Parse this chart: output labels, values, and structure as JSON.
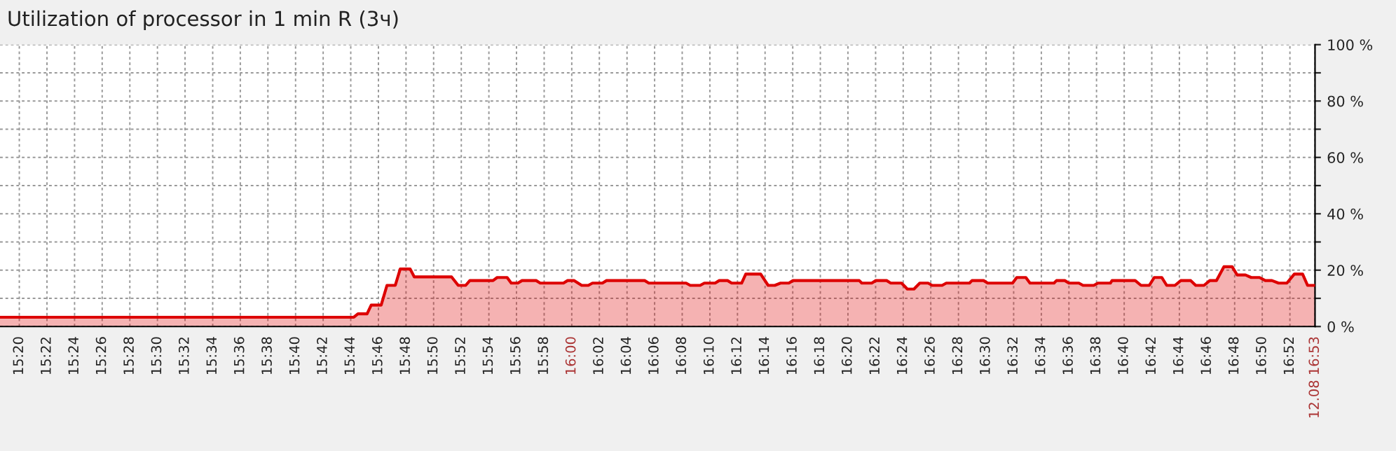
{
  "chart_data": {
    "type": "area",
    "title": "Utilization of processor in 1 min R (3ч)",
    "xlim": [
      15.31,
      16.897
    ],
    "ylim": [
      0,
      100
    ],
    "yticks": [
      {
        "value": 0,
        "label": "0 %"
      },
      {
        "value": 10,
        "label": null
      },
      {
        "value": 20,
        "label": "20 %"
      },
      {
        "value": 30,
        "label": null
      },
      {
        "value": 40,
        "label": "40 %"
      },
      {
        "value": 50,
        "label": null
      },
      {
        "value": 60,
        "label": "60 %"
      },
      {
        "value": 70,
        "label": null
      },
      {
        "value": 80,
        "label": "80 %"
      },
      {
        "value": 90,
        "label": null
      },
      {
        "value": 100,
        "label": "100 %"
      }
    ],
    "xticks": [
      {
        "value": 15.3333,
        "label": "15:20"
      },
      {
        "value": 15.3667,
        "label": "15:22"
      },
      {
        "value": 15.4,
        "label": "15:24"
      },
      {
        "value": 15.4333,
        "label": "15:26"
      },
      {
        "value": 15.4667,
        "label": "15:28"
      },
      {
        "value": 15.5,
        "label": "15:30"
      },
      {
        "value": 15.5333,
        "label": "15:32"
      },
      {
        "value": 15.5667,
        "label": "15:34"
      },
      {
        "value": 15.6,
        "label": "15:36"
      },
      {
        "value": 15.6333,
        "label": "15:38"
      },
      {
        "value": 15.6667,
        "label": "15:40"
      },
      {
        "value": 15.7,
        "label": "15:42"
      },
      {
        "value": 15.7333,
        "label": "15:44"
      },
      {
        "value": 15.7667,
        "label": "15:46"
      },
      {
        "value": 15.8,
        "label": "15:48"
      },
      {
        "value": 15.8333,
        "label": "15:50"
      },
      {
        "value": 15.8667,
        "label": "15:52"
      },
      {
        "value": 15.9,
        "label": "15:54"
      },
      {
        "value": 15.9333,
        "label": "15:56"
      },
      {
        "value": 15.9667,
        "label": "15:58"
      },
      {
        "value": 16,
        "label": "16:00"
      },
      {
        "value": 16.0333,
        "label": "16:02"
      },
      {
        "value": 16.0667,
        "label": "16:04"
      },
      {
        "value": 16.1,
        "label": "16:06"
      },
      {
        "value": 16.1333,
        "label": "16:08"
      },
      {
        "value": 16.1667,
        "label": "16:10"
      },
      {
        "value": 16.2,
        "label": "16:12"
      },
      {
        "value": 16.2333,
        "label": "16:14"
      },
      {
        "value": 16.2667,
        "label": "16:16"
      },
      {
        "value": 16.3,
        "label": "16:18"
      },
      {
        "value": 16.3333,
        "label": "16:20"
      },
      {
        "value": 16.3667,
        "label": "16:22"
      },
      {
        "value": 16.4,
        "label": "16:24"
      },
      {
        "value": 16.4333,
        "label": "16:26"
      },
      {
        "value": 16.4667,
        "label": "16:28"
      },
      {
        "value": 16.5,
        "label": "16:30"
      },
      {
        "value": 16.5333,
        "label": "16:32"
      },
      {
        "value": 16.5667,
        "label": "16:34"
      },
      {
        "value": 16.6,
        "label": "16:36"
      },
      {
        "value": 16.6333,
        "label": "16:38"
      },
      {
        "value": 16.6667,
        "label": "16:40"
      },
      {
        "value": 16.7,
        "label": "16:42"
      },
      {
        "value": 16.7333,
        "label": "16:44"
      },
      {
        "value": 16.7667,
        "label": "16:46"
      },
      {
        "value": 16.8,
        "label": "16:48"
      },
      {
        "value": 16.8333,
        "label": "16:50"
      },
      {
        "value": 16.8667,
        "label": "16:52"
      },
      {
        "value": 16.897,
        "label": "12.08 16:53"
      }
    ],
    "grid": true,
    "legend": false,
    "series": [
      {
        "color": "#dd0000",
        "x": [
          15.31,
          15.737,
          15.742,
          15.753,
          15.758,
          15.77,
          15.777,
          15.787,
          15.793,
          15.805,
          15.81,
          15.855,
          15.863,
          15.872,
          15.877,
          15.905,
          15.91,
          15.922,
          15.927,
          15.935,
          15.94,
          15.957,
          15.962,
          15.99,
          15.995,
          16.003,
          16.012,
          16.02,
          16.025,
          16.037,
          16.042,
          16.088,
          16.093,
          16.138,
          16.143,
          16.155,
          16.16,
          16.173,
          16.178,
          16.188,
          16.193,
          16.205,
          16.21,
          16.228,
          16.237,
          16.245,
          16.252,
          16.262,
          16.267,
          16.347,
          16.35,
          16.362,
          16.367,
          16.38,
          16.385,
          16.398,
          16.405,
          16.413,
          16.42,
          16.43,
          16.435,
          16.447,
          16.452,
          16.48,
          16.483,
          16.497,
          16.502,
          16.532,
          16.537,
          16.548,
          16.553,
          16.582,
          16.585,
          16.595,
          16.6,
          16.612,
          16.617,
          16.63,
          16.635,
          16.65,
          16.652,
          16.68,
          16.687,
          16.697,
          16.703,
          16.712,
          16.718,
          16.728,
          16.735,
          16.747,
          16.753,
          16.763,
          16.77,
          16.778,
          16.787,
          16.797,
          16.803,
          16.813,
          16.82,
          16.83,
          16.837,
          16.845,
          16.853,
          16.863,
          16.872,
          16.882,
          16.888,
          16.897
        ],
        "values": [
          3.3,
          3.3,
          4.5,
          4.5,
          7.6,
          7.6,
          14.6,
          14.6,
          20.4,
          20.4,
          17.6,
          17.6,
          14.6,
          14.6,
          16.3,
          16.3,
          17.4,
          17.4,
          15.4,
          15.4,
          16.3,
          16.3,
          15.4,
          15.4,
          16.3,
          16.3,
          14.6,
          14.6,
          15.4,
          15.4,
          16.3,
          16.3,
          15.4,
          15.4,
          14.6,
          14.6,
          15.4,
          15.4,
          16.3,
          16.3,
          15.4,
          15.4,
          18.6,
          18.6,
          14.6,
          14.6,
          15.4,
          15.4,
          16.3,
          16.3,
          15.4,
          15.4,
          16.3,
          16.3,
          15.4,
          15.4,
          13.3,
          13.3,
          15.4,
          15.4,
          14.6,
          14.6,
          15.4,
          15.4,
          16.3,
          16.3,
          15.4,
          15.4,
          17.4,
          17.4,
          15.4,
          15.4,
          16.3,
          16.3,
          15.4,
          15.4,
          14.6,
          14.6,
          15.4,
          15.4,
          16.3,
          16.3,
          14.6,
          14.6,
          17.4,
          17.4,
          14.6,
          14.6,
          16.3,
          16.3,
          14.6,
          14.6,
          16.3,
          16.3,
          21.2,
          21.2,
          18.3,
          18.3,
          17.4,
          17.4,
          16.3,
          16.3,
          15.4,
          15.4,
          18.6,
          18.6,
          14.6,
          14.6
        ]
      }
    ]
  }
}
